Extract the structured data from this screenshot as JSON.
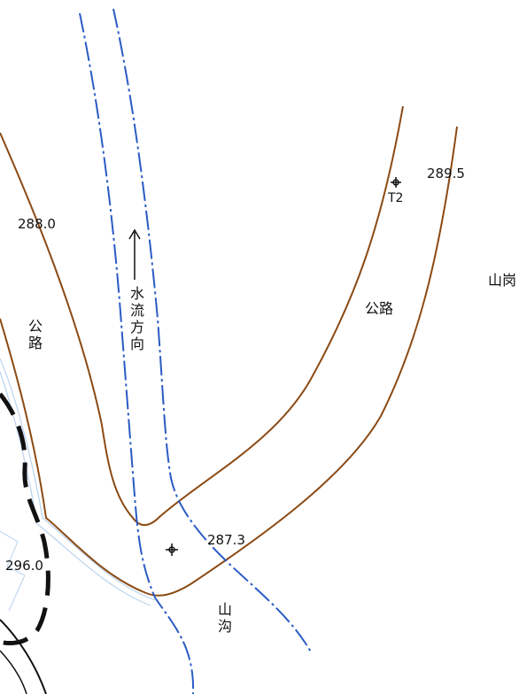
{
  "map": {
    "elevations": {
      "e288_0": "288.0",
      "e289_5": "289.5",
      "e287_3": "287.3",
      "e296_0": "296.0"
    },
    "labels": {
      "road_left": "公路",
      "road_right": "公路",
      "water_direction": "水流方向",
      "ravine": "山沟",
      "ridge": "山岗",
      "control_point": "T2"
    },
    "colors": {
      "road": "#8b4a14",
      "stream": "#2a5bc4",
      "contour": "#111111",
      "water_edge": "#b9d3ee"
    }
  }
}
